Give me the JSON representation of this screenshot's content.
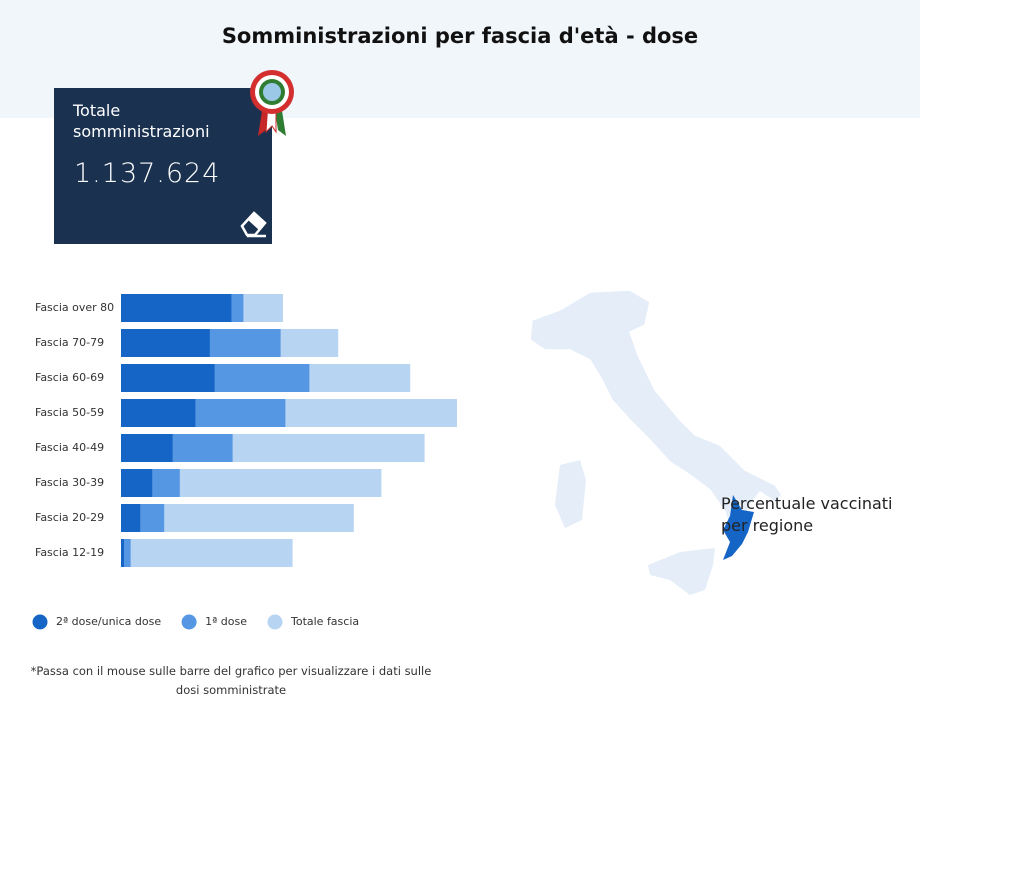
{
  "header": {
    "title": "Somministrazioni per fascia d'età - dose"
  },
  "card": {
    "label": "Totale somministrazioni",
    "value": "1.137.624"
  },
  "chart_data": {
    "type": "bar",
    "orientation": "horizontal",
    "categories": [
      "Fascia over 80",
      "Fascia 70-79",
      "Fascia 60-69",
      "Fascia 50-59",
      "Fascia 40-49",
      "Fascia 30-39",
      "Fascia 20-29",
      "Fascia 12-19"
    ],
    "series": [
      {
        "name": "Totale fascia",
        "color": "#b7d4f3",
        "values": [
          135000,
          181000,
          241000,
          280000,
          253000,
          217000,
          194000,
          143000
        ]
      },
      {
        "name": "1ª dose",
        "color": "#5597e3",
        "values": [
          102000,
          133000,
          157000,
          137000,
          93000,
          49000,
          36000,
          8000
        ]
      },
      {
        "name": "2ª dose/unica dose",
        "color": "#1565c6",
        "values": [
          92000,
          74000,
          78000,
          62000,
          43000,
          26000,
          16000,
          2500
        ]
      }
    ],
    "legend_order": [
      2,
      1,
      0
    ],
    "xlim": [
      0,
      300000
    ]
  },
  "footnote": "*Passa con il mouse sulle barre del grafico per visualizzare i dati sulle dosi somministrate",
  "map": {
    "label": "Percentuale vaccinati per regione"
  }
}
